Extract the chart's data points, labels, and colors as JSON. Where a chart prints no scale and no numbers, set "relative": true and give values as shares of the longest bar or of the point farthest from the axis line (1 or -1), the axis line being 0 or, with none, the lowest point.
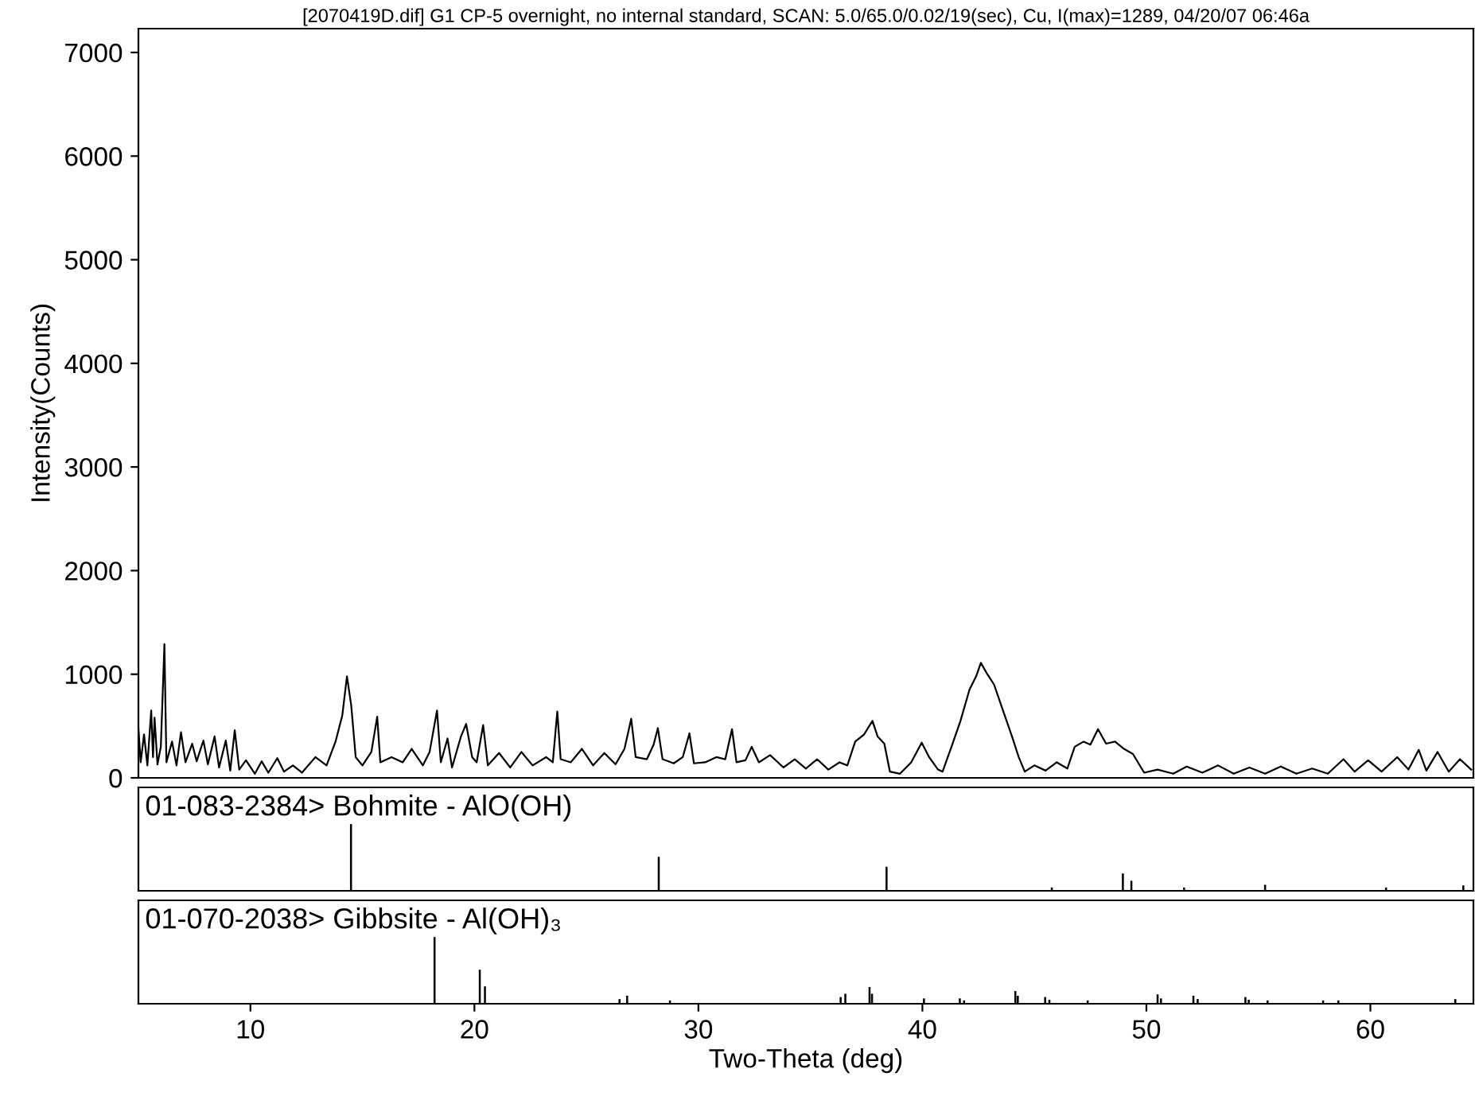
{
  "chart_data": [
    {
      "type": "line",
      "title": "[2070419D.dif] G1 CP-5 overnight, no internal standard, SCAN: 5.0/65.0/0.02/19(sec), Cu, I(max)=1289, 04/20/07 06:46a",
      "ylabel": "Intensity(Counts)",
      "xlim": [
        5,
        64.6
      ],
      "ylim": [
        0,
        7230
      ],
      "yticks": [
        0,
        1000,
        2000,
        3000,
        4000,
        5000,
        6000,
        7000
      ],
      "tick_labels": "y",
      "grid": false,
      "legend": false,
      "series": [
        {
          "color": "#000000",
          "x": [
            5.0,
            5.1,
            5.25,
            5.4,
            5.57,
            5.65,
            5.72,
            5.85,
            6.0,
            6.16,
            6.25,
            6.5,
            6.7,
            6.9,
            7.1,
            7.4,
            7.6,
            7.9,
            8.1,
            8.4,
            8.6,
            8.9,
            9.1,
            9.3,
            9.5,
            9.8,
            10.2,
            10.5,
            10.8,
            11.2,
            11.5,
            11.9,
            12.3,
            12.9,
            13.4,
            13.8,
            14.1,
            14.31,
            14.5,
            14.7,
            15.0,
            15.4,
            15.66,
            15.8,
            16.3,
            16.8,
            17.2,
            17.7,
            18.0,
            18.33,
            18.5,
            18.8,
            19.0,
            19.4,
            19.63,
            19.9,
            20.1,
            20.39,
            20.6,
            21.1,
            21.6,
            22.1,
            22.6,
            23.2,
            23.5,
            23.7,
            23.85,
            24.3,
            24.8,
            25.3,
            25.8,
            26.3,
            26.7,
            27.0,
            27.2,
            27.7,
            28.0,
            28.19,
            28.4,
            28.9,
            29.3,
            29.6,
            29.8,
            30.3,
            30.8,
            31.2,
            31.5,
            31.7,
            32.1,
            32.38,
            32.7,
            33.2,
            33.8,
            34.3,
            34.8,
            35.3,
            35.8,
            36.3,
            36.65,
            37.0,
            37.4,
            37.77,
            38.0,
            38.3,
            38.55,
            39.0,
            39.5,
            39.97,
            40.3,
            40.7,
            40.9,
            41.3,
            41.7,
            42.1,
            42.4,
            42.61,
            42.9,
            43.2,
            43.6,
            44.0,
            44.3,
            44.57,
            45.0,
            45.5,
            46.0,
            46.47,
            46.8,
            47.2,
            47.5,
            47.84,
            48.2,
            48.6,
            49.0,
            49.4,
            49.9,
            50.5,
            51.2,
            51.8,
            52.5,
            53.2,
            53.9,
            54.6,
            55.3,
            56.0,
            56.7,
            57.4,
            58.1,
            58.8,
            59.3,
            59.9,
            60.5,
            61.2,
            61.7,
            62.16,
            62.5,
            63.0,
            63.5,
            64.0,
            64.5
          ],
          "values": [
            480,
            150,
            420,
            120,
            650,
            200,
            580,
            130,
            300,
            1290,
            150,
            350,
            120,
            440,
            150,
            330,
            160,
            360,
            130,
            400,
            100,
            360,
            70,
            460,
            80,
            170,
            40,
            160,
            50,
            190,
            60,
            120,
            50,
            200,
            120,
            350,
            600,
            980,
            700,
            200,
            120,
            250,
            590,
            150,
            200,
            150,
            280,
            120,
            250,
            650,
            150,
            380,
            100,
            400,
            520,
            200,
            150,
            510,
            120,
            240,
            100,
            250,
            120,
            200,
            150,
            640,
            180,
            150,
            280,
            120,
            240,
            130,
            280,
            570,
            200,
            180,
            320,
            480,
            180,
            140,
            200,
            430,
            140,
            150,
            200,
            180,
            470,
            150,
            170,
            300,
            150,
            220,
            100,
            180,
            90,
            180,
            80,
            150,
            120,
            350,
            420,
            550,
            400,
            330,
            60,
            40,
            150,
            340,
            200,
            80,
            60,
            300,
            550,
            850,
            980,
            1110,
            1000,
            900,
            650,
            400,
            200,
            60,
            120,
            70,
            150,
            90,
            300,
            350,
            320,
            470,
            330,
            350,
            280,
            230,
            50,
            80,
            40,
            110,
            50,
            120,
            40,
            100,
            40,
            110,
            40,
            90,
            40,
            180,
            60,
            170,
            60,
            200,
            80,
            270,
            70,
            250,
            60,
            180,
            80
          ]
        }
      ]
    },
    {
      "type": "bar",
      "title": "01-083-2384> Bohmite - AlO(OH)",
      "relative": true,
      "tick_labels": false,
      "xlim": [
        5,
        64.6
      ],
      "color": "#000000",
      "x": [
        14.49,
        28.23,
        38.4,
        45.78,
        48.95,
        49.33,
        51.68,
        55.3,
        60.7,
        64.15
      ],
      "values": [
        1,
        0.51,
        0.36,
        0.05,
        0.26,
        0.15,
        0.05,
        0.09,
        0.05,
        0.08
      ]
    },
    {
      "type": "bar",
      "title": "01-070-2038> Gibbsite - Al(OH)₃",
      "relative": true,
      "tick_labels": "x",
      "xlabel": "Two-Theta (deg)",
      "xlim": [
        5,
        64.6
      ],
      "xticks": [
        10,
        20,
        30,
        40,
        50,
        60
      ],
      "color": "#000000",
      "x": [
        18.22,
        20.24,
        20.47,
        26.48,
        26.82,
        28.73,
        36.35,
        36.56,
        37.64,
        37.75,
        40.07,
        41.67,
        41.86,
        44.15,
        44.26,
        45.48,
        45.67,
        47.38,
        50.5,
        50.65,
        52.1,
        52.29,
        54.42,
        54.57,
        55.41,
        57.89,
        58.57,
        63.79
      ],
      "values": [
        1,
        0.51,
        0.26,
        0.07,
        0.12,
        0.05,
        0.1,
        0.15,
        0.25,
        0.15,
        0.08,
        0.08,
        0.05,
        0.19,
        0.12,
        0.1,
        0.06,
        0.05,
        0.14,
        0.08,
        0.12,
        0.07,
        0.1,
        0.06,
        0.05,
        0.05,
        0.05,
        0.07
      ]
    }
  ]
}
